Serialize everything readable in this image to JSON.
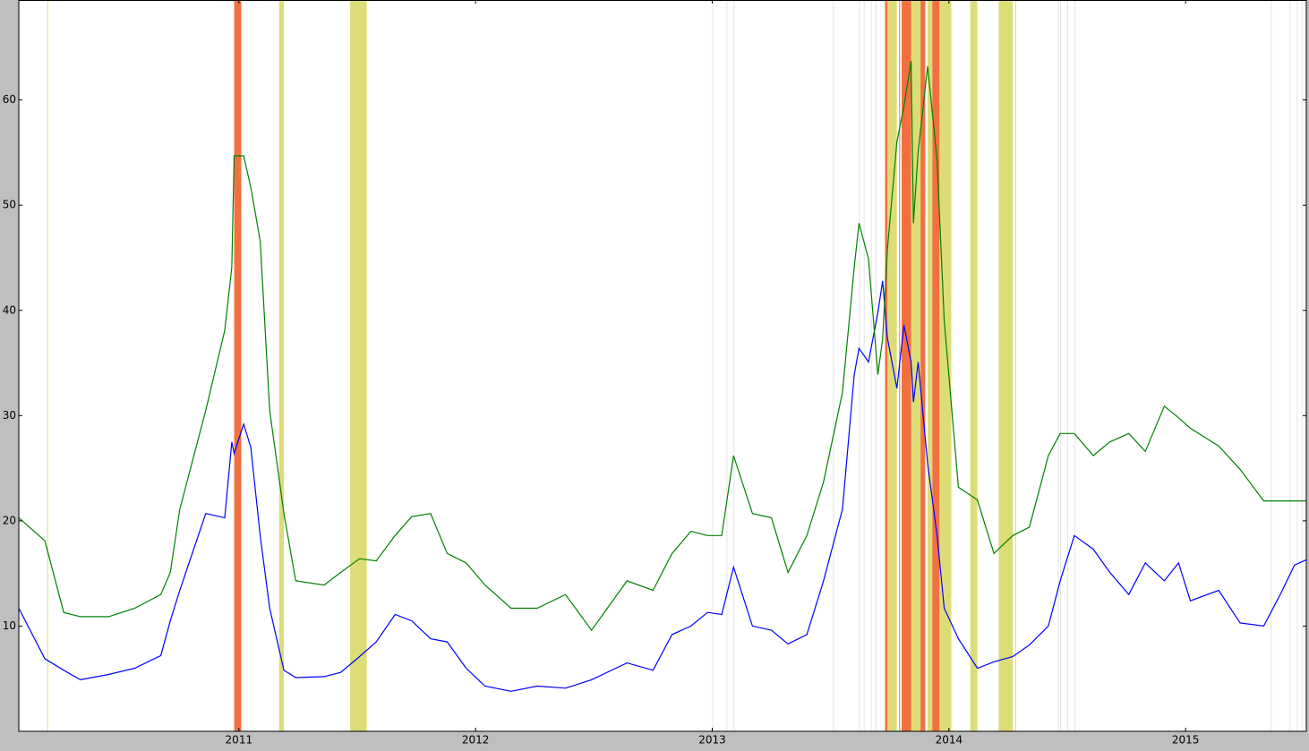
{
  "chart_data": {
    "type": "line",
    "x": [
      2010.07,
      2010.18,
      2010.26,
      2010.33,
      2010.45,
      2010.56,
      2010.67,
      2010.71,
      2010.75,
      2010.86,
      2010.94,
      2010.97,
      2010.98,
      2011.02,
      2011.05,
      2011.09,
      2011.13,
      2011.19,
      2011.24,
      2011.36,
      2011.43,
      2011.51,
      2011.58,
      2011.66,
      2011.73,
      2011.81,
      2011.88,
      2011.96,
      2012.04,
      2012.15,
      2012.26,
      2012.38,
      2012.49,
      2012.64,
      2012.75,
      2012.83,
      2012.91,
      2012.98,
      2013.04,
      2013.09,
      2013.17,
      2013.25,
      2013.32,
      2013.4,
      2013.47,
      2013.55,
      2013.6,
      2013.62,
      2013.66,
      2013.7,
      2013.72,
      2013.74,
      2013.78,
      2013.81,
      2013.84,
      2013.85,
      2013.87,
      2013.91,
      2013.95,
      2013.98,
      2014.04,
      2014.12,
      2014.19,
      2014.27,
      2014.34,
      2014.42,
      2014.47,
      2014.53,
      2014.61,
      2014.68,
      2014.76,
      2014.83,
      2014.91,
      2014.97,
      2015.02,
      2015.14,
      2015.23,
      2015.33,
      2015.4,
      2015.46,
      2015.51
    ],
    "series": [
      {
        "color": "#0000ff",
        "values": [
          11.7,
          6.9,
          5.8,
          4.9,
          5.4,
          6.0,
          7.2,
          10.5,
          13.4,
          20.7,
          20.3,
          27.5,
          26.4,
          29.2,
          27.0,
          18.6,
          11.7,
          5.8,
          5.1,
          5.2,
          5.6,
          7.1,
          8.5,
          11.1,
          10.5,
          8.8,
          8.5,
          6.0,
          4.3,
          3.8,
          4.3,
          4.1,
          4.9,
          6.5,
          5.8,
          9.2,
          10.0,
          11.3,
          11.1,
          15.6,
          10.0,
          9.6,
          8.3,
          9.2,
          14.3,
          21.1,
          33.9,
          36.4,
          35.1,
          39.8,
          42.8,
          37.4,
          32.6,
          38.6,
          35.1,
          31.3,
          35.1,
          25.4,
          18.6,
          11.7,
          8.8,
          6.0,
          6.6,
          7.1,
          8.2,
          10.0,
          14.3,
          18.6,
          17.3,
          15.1,
          13.0,
          16.0,
          14.3,
          16.0,
          12.4,
          13.4,
          10.3,
          10.0,
          13.0,
          15.8,
          16.3
        ]
      },
      {
        "color": "#008000",
        "values": [
          20.3,
          18.1,
          11.3,
          10.9,
          10.9,
          11.7,
          13.0,
          15.1,
          21.1,
          30.5,
          38.1,
          44.1,
          54.7,
          54.7,
          51.7,
          46.6,
          30.5,
          20.7,
          14.3,
          13.9,
          15.1,
          16.4,
          16.2,
          18.6,
          20.4,
          20.7,
          16.9,
          16.0,
          13.9,
          11.7,
          11.7,
          13.0,
          9.6,
          14.3,
          13.4,
          16.9,
          19.0,
          18.6,
          18.6,
          26.2,
          20.7,
          20.3,
          15.1,
          18.6,
          23.7,
          32.2,
          44.1,
          48.3,
          44.9,
          33.9,
          37.3,
          45.8,
          56.0,
          59.4,
          63.7,
          48.3,
          55.1,
          63.2,
          54.3,
          39.0,
          23.2,
          22.0,
          16.9,
          18.6,
          19.4,
          26.2,
          28.3,
          28.3,
          26.2,
          27.5,
          28.3,
          26.6,
          30.9,
          29.8,
          28.8,
          27.1,
          24.9,
          21.9,
          21.9,
          21.9,
          21.9
        ]
      }
    ],
    "spans": [
      {
        "color": "#dddd77",
        "ranges": [
          [
            2010.19,
            2010.19
          ],
          [
            2011.17,
            2011.19
          ],
          [
            2011.47,
            2011.54
          ],
          [
            2013.74,
            2013.78
          ],
          [
            2013.84,
            2013.88
          ],
          [
            2013.91,
            2013.93
          ],
          [
            2013.96,
            2014.01
          ],
          [
            2014.09,
            2014.12
          ],
          [
            2014.21,
            2014.27
          ],
          [
            2014.28,
            2014.28
          ]
        ]
      },
      {
        "color": "#f07040",
        "ranges": [
          [
            2010.98,
            2011.01
          ],
          [
            2013.73,
            2013.74
          ],
          [
            2013.79,
            2013.79
          ],
          [
            2013.8,
            2013.84
          ],
          [
            2013.88,
            2013.9
          ],
          [
            2013.93,
            2013.96
          ]
        ]
      },
      {
        "color": "#e4e4e4",
        "ranges": [
          [
            2013.0,
            2013.0
          ],
          [
            2013.06,
            2013.06
          ],
          [
            2013.09,
            2013.09
          ],
          [
            2013.51,
            2013.51
          ],
          [
            2013.62,
            2013.62
          ],
          [
            2013.64,
            2013.64
          ],
          [
            2013.67,
            2013.67
          ],
          [
            2013.69,
            2013.69
          ],
          [
            2014.46,
            2014.46
          ],
          [
            2014.47,
            2014.47
          ],
          [
            2014.5,
            2014.5
          ],
          [
            2014.53,
            2014.53
          ],
          [
            2015.36,
            2015.36
          ],
          [
            2015.44,
            2015.44
          ],
          [
            2015.47,
            2015.47
          ],
          [
            2015.49,
            2015.49
          ]
        ]
      }
    ],
    "xlim": [
      2010.07,
      2015.51
    ],
    "xticks": [
      2011,
      2012,
      2013,
      2014,
      2015
    ],
    "ylim": [
      0,
      69.5
    ],
    "yticks": [
      10,
      20,
      30,
      40,
      50,
      60
    ]
  }
}
